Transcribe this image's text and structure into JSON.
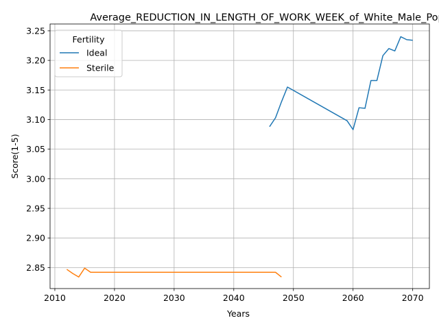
{
  "chart_data": {
    "type": "line",
    "title": "Average_REDUCTION_IN_LENGTH_OF_WORK_WEEK_of_White_Male_Pop",
    "xlabel": "Years",
    "ylabel": "Score(1-5)",
    "xlim": [
      2009.2,
      2072.8
    ],
    "ylim": [
      2.8145,
      3.2615
    ],
    "xticks": [
      2010,
      2020,
      2030,
      2040,
      2050,
      2060,
      2070
    ],
    "yticks": [
      2.85,
      2.9,
      2.95,
      3.0,
      3.05,
      3.1,
      3.15,
      3.2,
      3.25
    ],
    "grid": true,
    "legend": {
      "title": "Fertility",
      "placement": "top-left"
    },
    "series": [
      {
        "name": "Ideal",
        "color": "#1f77b4",
        "x": [
          2046,
          2047,
          2048,
          2049,
          2059,
          2060,
          2061,
          2062,
          2063,
          2064,
          2065,
          2066,
          2067,
          2068,
          2069,
          2070
        ],
        "y": [
          3.088,
          3.103,
          3.13,
          3.155,
          3.098,
          3.083,
          3.12,
          3.119,
          3.166,
          3.166,
          3.208,
          3.22,
          3.216,
          3.24,
          3.235,
          3.234
        ]
      },
      {
        "name": "Sterile",
        "color": "#ff7f0e",
        "x": [
          2012,
          2013,
          2014,
          2015,
          2016,
          2017,
          2047,
          2048
        ],
        "y": [
          2.847,
          2.84,
          2.834,
          2.849,
          2.842,
          2.842,
          2.842,
          2.834
        ]
      }
    ]
  }
}
